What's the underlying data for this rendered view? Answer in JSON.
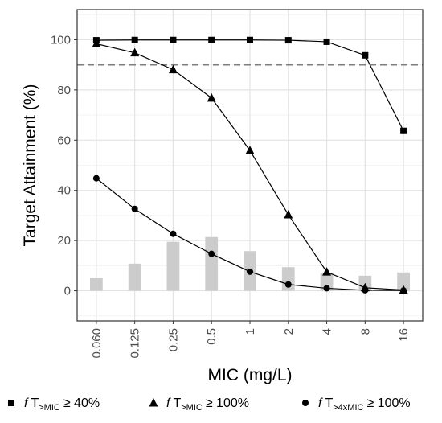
{
  "chart_data": {
    "type": "line",
    "xlabel": "MIC (mg/L)",
    "ylabel": "Target Attainment (%)",
    "categories": [
      "0.060",
      "0.125",
      "0.25",
      "0.5",
      "1",
      "2",
      "4",
      "8",
      "16"
    ],
    "ylim": [
      -12,
      112
    ],
    "yticks": [
      0,
      20,
      40,
      60,
      80,
      100
    ],
    "grid": true,
    "threshold": 90,
    "legend_position": "bottom",
    "distribution": [
      5,
      10.8,
      19.5,
      21.4,
      15.8,
      9.4,
      7,
      6,
      7.3
    ],
    "series": [
      {
        "f": "f",
        "t": "T",
        "sub": ">MIC",
        "cond": "≥ 40%",
        "marker": "square",
        "values": [
          99.8,
          99.9,
          99.9,
          99.9,
          99.9,
          99.8,
          99.2,
          93.8,
          63.7
        ]
      },
      {
        "f": "f",
        "t": "T",
        "sub": ">MIC",
        "cond": "≥ 100%",
        "marker": "triangle",
        "values": [
          98.4,
          94.8,
          88.1,
          76.8,
          55.9,
          30.3,
          7.5,
          1.2,
          0.3
        ]
      },
      {
        "f": "f",
        "t": "T",
        "sub": ">4xMIC",
        "cond": "≥ 100%",
        "marker": "circle",
        "values": [
          44.8,
          32.6,
          22.7,
          14.7,
          7.6,
          2.5,
          1.0,
          0.2,
          0.1
        ]
      }
    ]
  }
}
